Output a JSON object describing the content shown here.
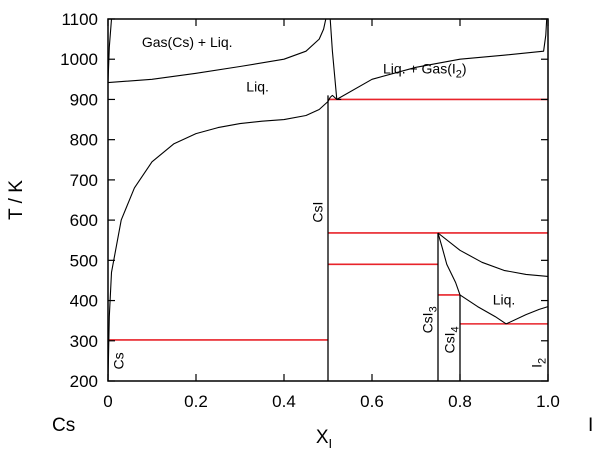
{
  "chart_data": {
    "type": "line",
    "title": "",
    "xlabel": "X",
    "xlabel_sub": "I",
    "ylabel": "T / K",
    "xlim": [
      0,
      1
    ],
    "ylim": [
      200,
      1100
    ],
    "x_ticks": [
      {
        "value": 0,
        "label": "0"
      },
      {
        "value": 0.2,
        "label": "0.2"
      },
      {
        "value": 0.4,
        "label": "0.4"
      },
      {
        "value": 0.6,
        "label": "0.6"
      },
      {
        "value": 0.8,
        "label": "0.8"
      },
      {
        "value": 1.0,
        "label": "1.0"
      }
    ],
    "y_ticks": [
      {
        "value": 200,
        "label": "200"
      },
      {
        "value": 300,
        "label": "300"
      },
      {
        "value": 400,
        "label": "400"
      },
      {
        "value": 500,
        "label": "500"
      },
      {
        "value": 600,
        "label": "600"
      },
      {
        "value": 700,
        "label": "700"
      },
      {
        "value": 800,
        "label": "800"
      },
      {
        "value": 900,
        "label": "900"
      },
      {
        "value": 1000,
        "label": "1000"
      },
      {
        "value": 1100,
        "label": "1100"
      }
    ],
    "endpoint_labels": {
      "left": "Cs",
      "right": "I"
    },
    "colors": {
      "phase_boundary": "#000000",
      "invariant_line": "#e8232a"
    },
    "invariant_lines": [
      {
        "x1": 0.0,
        "x2": 0.5,
        "T": 302
      },
      {
        "x1": 0.5,
        "x2": 1.0,
        "T": 900
      },
      {
        "x1": 0.5,
        "x2": 1.0,
        "T": 568
      },
      {
        "x1": 0.5,
        "x2": 0.75,
        "T": 490
      },
      {
        "x1": 0.75,
        "x2": 0.8,
        "T": 414
      },
      {
        "x1": 0.8,
        "x2": 1.0,
        "T": 342
      }
    ],
    "compound_lines": [
      {
        "x": 0.5,
        "T1": 200,
        "T2": 910
      },
      {
        "x": 0.75,
        "T1": 200,
        "T2": 568
      },
      {
        "x": 0.8,
        "T1": 200,
        "T2": 414
      }
    ],
    "boundary_curves": [
      [
        [
          0.0,
          200
        ],
        [
          0.003,
          360
        ],
        [
          0.008,
          470
        ],
        [
          0.03,
          600
        ],
        [
          0.06,
          680
        ],
        [
          0.1,
          745
        ],
        [
          0.15,
          790
        ],
        [
          0.2,
          815
        ],
        [
          0.25,
          830
        ],
        [
          0.3,
          840
        ],
        [
          0.35,
          846
        ],
        [
          0.4,
          850
        ],
        [
          0.45,
          860
        ],
        [
          0.48,
          875
        ],
        [
          0.5,
          895
        ],
        [
          0.505,
          905
        ],
        [
          0.51,
          910
        ],
        [
          0.52,
          900
        ],
        [
          0.53,
          900
        ]
      ],
      [
        [
          0.0,
          942
        ],
        [
          0.1,
          950
        ],
        [
          0.2,
          965
        ],
        [
          0.3,
          982
        ],
        [
          0.4,
          1000
        ],
        [
          0.45,
          1020
        ],
        [
          0.48,
          1050
        ],
        [
          0.49,
          1075
        ],
        [
          0.495,
          1100
        ]
      ],
      [
        [
          0.0,
          942
        ],
        [
          0.003,
          1030
        ],
        [
          0.008,
          1100
        ]
      ],
      [
        [
          0.52,
          900
        ],
        [
          0.515,
          960
        ],
        [
          0.51,
          1020
        ],
        [
          0.505,
          1100
        ]
      ],
      [
        [
          0.52,
          900
        ],
        [
          0.6,
          950
        ],
        [
          0.7,
          980
        ],
        [
          0.8,
          1000
        ],
        [
          0.9,
          1010
        ],
        [
          0.99,
          1020
        ],
        [
          0.995,
          1060
        ],
        [
          0.997,
          1100
        ]
      ],
      [
        [
          0.75,
          568
        ],
        [
          0.8,
          525
        ],
        [
          0.85,
          495
        ],
        [
          0.9,
          475
        ],
        [
          0.95,
          465
        ],
        [
          1.0,
          460
        ]
      ],
      [
        [
          0.75,
          568
        ],
        [
          0.76,
          530
        ],
        [
          0.77,
          490
        ],
        [
          0.79,
          445
        ],
        [
          0.8,
          414
        ],
        [
          0.84,
          385
        ],
        [
          0.88,
          360
        ],
        [
          0.905,
          342
        ]
      ],
      [
        [
          0.905,
          342
        ],
        [
          0.95,
          365
        ],
        [
          0.98,
          378
        ],
        [
          1.0,
          385
        ]
      ]
    ],
    "region_labels": [
      {
        "text": "Gas(Cs) + Liq.",
        "x": 0.18,
        "T": 1030
      },
      {
        "text": "Liq.",
        "x": 0.34,
        "T": 920
      },
      {
        "text": "Liq. + Gas(",
        "sub": "2",
        "sub_base": "I",
        "suffix": ")",
        "x": 0.72,
        "T": 965
      },
      {
        "text": "Liq.",
        "x": 0.9,
        "T": 390
      }
    ],
    "phase_labels": [
      {
        "base": "Cs",
        "sub": "",
        "x": 0.035,
        "T": 250
      },
      {
        "base": "CsI",
        "sub": "",
        "x": 0.488,
        "T": 620
      },
      {
        "base": "CsI",
        "sub": "3",
        "x": 0.737,
        "T": 352
      },
      {
        "base": "CsI",
        "sub": "4",
        "x": 0.787,
        "T": 302
      },
      {
        "base": "I",
        "sub": "2",
        "x": 0.985,
        "T": 245
      }
    ]
  }
}
